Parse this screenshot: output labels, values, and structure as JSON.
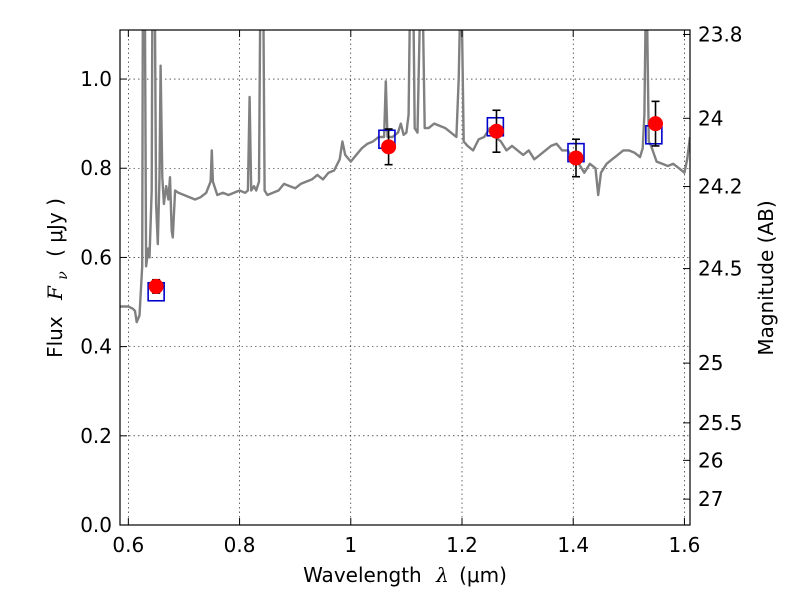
{
  "chart_data": {
    "type": "line",
    "xlabel_text": "Wavelength",
    "xlabel_symbol": "λ",
    "xlabel_unit": "(μm)",
    "ylabel_text": "Flux",
    "ylabel_symbol": "F",
    "ylabel_sub": "ν",
    "ylabel_unit": "( μJy )",
    "y2label": "Magnitude (AB)",
    "xlim": [
      0.585,
      1.61
    ],
    "ylim": [
      0.0,
      1.11
    ],
    "grid": true,
    "x_ticks": [
      0.6,
      0.8,
      1.0,
      1.2,
      1.4,
      1.6
    ],
    "x_tick_labels": [
      "0.6",
      "0.8",
      "1",
      "1.2",
      "1.4",
      "1.6"
    ],
    "y_ticks": [
      0.0,
      0.2,
      0.4,
      0.6,
      0.8,
      1.0
    ],
    "y_tick_labels": [
      "0.0",
      "0.2",
      "0.4",
      "0.6",
      "0.8",
      "1.0"
    ],
    "y2_ticks": [
      {
        "label": "23.8",
        "flux": 1.1
      },
      {
        "label": "24",
        "flux": 0.912
      },
      {
        "label": "24.2",
        "flux": 0.759
      },
      {
        "label": "24.5",
        "flux": 0.575
      },
      {
        "label": "25",
        "flux": 0.363
      },
      {
        "label": "25.5",
        "flux": 0.229
      },
      {
        "label": "26",
        "flux": 0.145
      },
      {
        "label": "27",
        "flux": 0.058
      }
    ],
    "series": [
      {
        "type": "line",
        "color": "#808080",
        "points": [
          [
            0.585,
            0.49
          ],
          [
            0.6,
            0.49
          ],
          [
            0.608,
            0.485
          ],
          [
            0.612,
            0.48
          ],
          [
            0.615,
            0.455
          ],
          [
            0.62,
            0.47
          ],
          [
            0.625,
            0.58
          ],
          [
            0.626,
            1.12
          ],
          [
            0.63,
            1.12
          ],
          [
            0.632,
            0.58
          ],
          [
            0.636,
            0.62
          ],
          [
            0.638,
            0.6
          ],
          [
            0.642,
            0.75
          ],
          [
            0.643,
            1.12
          ],
          [
            0.648,
            1.12
          ],
          [
            0.65,
            0.72
          ],
          [
            0.653,
            0.63
          ],
          [
            0.656,
            0.78
          ],
          [
            0.658,
            1.03
          ],
          [
            0.661,
            0.78
          ],
          [
            0.664,
            0.72
          ],
          [
            0.668,
            0.76
          ],
          [
            0.672,
            0.73
          ],
          [
            0.675,
            0.78
          ],
          [
            0.678,
            0.66
          ],
          [
            0.68,
            0.645
          ],
          [
            0.684,
            0.75
          ],
          [
            0.69,
            0.745
          ],
          [
            0.7,
            0.74
          ],
          [
            0.71,
            0.735
          ],
          [
            0.72,
            0.73
          ],
          [
            0.73,
            0.735
          ],
          [
            0.74,
            0.745
          ],
          [
            0.748,
            0.77
          ],
          [
            0.75,
            0.84
          ],
          [
            0.752,
            0.77
          ],
          [
            0.76,
            0.74
          ],
          [
            0.77,
            0.745
          ],
          [
            0.78,
            0.74
          ],
          [
            0.79,
            0.745
          ],
          [
            0.8,
            0.75
          ],
          [
            0.81,
            0.745
          ],
          [
            0.815,
            0.75
          ],
          [
            0.818,
            0.96
          ],
          [
            0.821,
            0.75
          ],
          [
            0.826,
            0.76
          ],
          [
            0.83,
            0.75
          ],
          [
            0.835,
            0.77
          ],
          [
            0.837,
            1.12
          ],
          [
            0.843,
            1.12
          ],
          [
            0.845,
            0.75
          ],
          [
            0.85,
            0.74
          ],
          [
            0.86,
            0.745
          ],
          [
            0.87,
            0.75
          ],
          [
            0.88,
            0.765
          ],
          [
            0.89,
            0.76
          ],
          [
            0.9,
            0.755
          ],
          [
            0.91,
            0.765
          ],
          [
            0.92,
            0.77
          ],
          [
            0.93,
            0.775
          ],
          [
            0.94,
            0.785
          ],
          [
            0.95,
            0.775
          ],
          [
            0.96,
            0.79
          ],
          [
            0.97,
            0.795
          ],
          [
            0.98,
            0.82
          ],
          [
            0.985,
            0.86
          ],
          [
            0.99,
            0.83
          ],
          [
            1.0,
            0.815
          ],
          [
            1.01,
            0.83
          ],
          [
            1.02,
            0.845
          ],
          [
            1.03,
            0.855
          ],
          [
            1.04,
            0.86
          ],
          [
            1.05,
            0.87
          ],
          [
            1.06,
            0.87
          ],
          [
            1.063,
            0.995
          ],
          [
            1.066,
            0.87
          ],
          [
            1.075,
            0.87
          ],
          [
            1.085,
            0.88
          ],
          [
            1.09,
            0.9
          ],
          [
            1.095,
            0.875
          ],
          [
            1.1,
            0.88
          ],
          [
            1.104,
            0.92
          ],
          [
            1.106,
            1.12
          ],
          [
            1.113,
            1.12
          ],
          [
            1.115,
            0.89
          ],
          [
            1.12,
            0.88
          ],
          [
            1.124,
            1.12
          ],
          [
            1.13,
            1.12
          ],
          [
            1.133,
            0.89
          ],
          [
            1.14,
            0.89
          ],
          [
            1.15,
            0.9
          ],
          [
            1.16,
            0.895
          ],
          [
            1.17,
            0.89
          ],
          [
            1.18,
            0.88
          ],
          [
            1.19,
            0.87
          ],
          [
            1.194,
            1.0
          ],
          [
            1.196,
            1.12
          ],
          [
            1.2,
            1.12
          ],
          [
            1.203,
            0.86
          ],
          [
            1.21,
            0.85
          ],
          [
            1.22,
            0.84
          ],
          [
            1.23,
            0.865
          ],
          [
            1.24,
            0.87
          ],
          [
            1.25,
            0.89
          ],
          [
            1.26,
            0.87
          ],
          [
            1.27,
            0.86
          ],
          [
            1.28,
            0.84
          ],
          [
            1.29,
            0.85
          ],
          [
            1.3,
            0.84
          ],
          [
            1.31,
            0.83
          ],
          [
            1.32,
            0.84
          ],
          [
            1.33,
            0.82
          ],
          [
            1.34,
            0.83
          ],
          [
            1.35,
            0.84
          ],
          [
            1.36,
            0.85
          ],
          [
            1.37,
            0.855
          ],
          [
            1.38,
            0.84
          ],
          [
            1.39,
            0.84
          ],
          [
            1.4,
            0.82
          ],
          [
            1.41,
            0.81
          ],
          [
            1.42,
            0.79
          ],
          [
            1.43,
            0.81
          ],
          [
            1.44,
            0.8
          ],
          [
            1.445,
            0.74
          ],
          [
            1.45,
            0.79
          ],
          [
            1.46,
            0.81
          ],
          [
            1.47,
            0.82
          ],
          [
            1.48,
            0.83
          ],
          [
            1.49,
            0.84
          ],
          [
            1.5,
            0.84
          ],
          [
            1.51,
            0.835
          ],
          [
            1.52,
            0.825
          ],
          [
            1.525,
            0.845
          ],
          [
            1.528,
            0.92
          ],
          [
            1.53,
            1.12
          ],
          [
            1.533,
            1.12
          ],
          [
            1.536,
            0.86
          ],
          [
            1.54,
            0.85
          ],
          [
            1.55,
            0.815
          ],
          [
            1.56,
            0.81
          ],
          [
            1.57,
            0.805
          ],
          [
            1.58,
            0.81
          ],
          [
            1.59,
            0.8
          ],
          [
            1.6,
            0.79
          ],
          [
            1.605,
            0.82
          ],
          [
            1.61,
            0.87
          ]
        ]
      }
    ],
    "boxes": {
      "color": "#0000cc",
      "points": [
        {
          "x": 0.65,
          "y": 0.523
        },
        {
          "x": 1.065,
          "y": 0.865
        },
        {
          "x": 1.26,
          "y": 0.893
        },
        {
          "x": 1.405,
          "y": 0.835
        },
        {
          "x": 1.545,
          "y": 0.875
        }
      ]
    },
    "measurements": {
      "color": "#ff0000",
      "points": [
        {
          "x": 0.65,
          "y": 0.535,
          "err": 0.015
        },
        {
          "x": 1.068,
          "y": 0.848,
          "err": 0.04
        },
        {
          "x": 1.262,
          "y": 0.883,
          "err": 0.047
        },
        {
          "x": 1.405,
          "y": 0.823,
          "err": 0.042
        },
        {
          "x": 1.548,
          "y": 0.9,
          "err": 0.05
        }
      ]
    }
  }
}
